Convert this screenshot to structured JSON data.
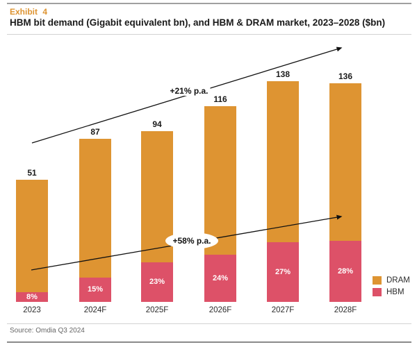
{
  "header": {
    "exhibit_label": "Exhibit 4",
    "title": "HBM bit demand (Gigabit equivalent bn), and HBM & DRAM market, 2023–2028 ($bn)"
  },
  "chart_data": {
    "type": "bar",
    "stacked": true,
    "title": "HBM bit demand (Gigabit equivalent bn), and HBM & DRAM market, 2023–2028 ($bn)",
    "categories": [
      "2023",
      "2024F",
      "2025F",
      "2026F",
      "2027F",
      "2028F"
    ],
    "totals": [
      51,
      87,
      94,
      116,
      138,
      136
    ],
    "total_labels": [
      "51",
      "87",
      "94",
      "116",
      "138",
      "136"
    ],
    "hbm_share_pct": [
      8,
      15,
      23,
      24,
      27,
      28
    ],
    "hbm_share_labels": [
      "8%",
      "15%",
      "23%",
      "24%",
      "27%",
      "28%"
    ],
    "series": [
      {
        "name": "DRAM",
        "color": "#de9432"
      },
      {
        "name": "HBM",
        "color": "#dd5168"
      }
    ],
    "annotations": [
      {
        "text": "+21% p.a."
      },
      {
        "text": "+58% p.a."
      }
    ],
    "legend_position": "bottom-right",
    "grid": false,
    "value_axis_visible": false
  },
  "annotations": {
    "top_growth": "+21% p.a.",
    "bottom_growth": "+58% p.a."
  },
  "legend": {
    "items": [
      {
        "label": "DRAM",
        "color": "#de9432"
      },
      {
        "label": "HBM",
        "color": "#dd5168"
      }
    ]
  },
  "footer": {
    "source": "Source: Omdia Q3 2024"
  },
  "colors": {
    "dram": "#de9432",
    "hbm": "#dd5168",
    "accent": "#de9432"
  }
}
